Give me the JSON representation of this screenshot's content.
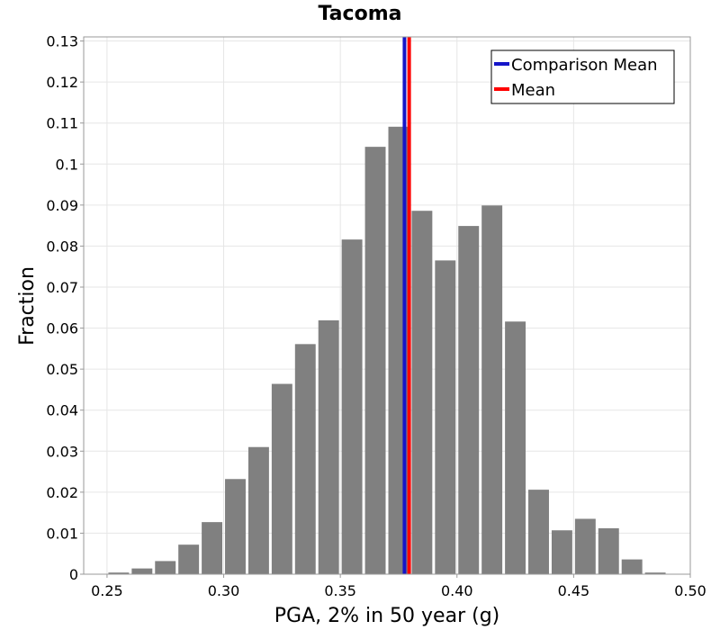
{
  "chart_data": {
    "type": "bar",
    "title": "Tacoma",
    "xlabel": "PGA, 2% in 50 year (g)",
    "ylabel": "Fraction",
    "xlim": [
      0.24,
      0.5
    ],
    "ylim": [
      0,
      0.131
    ],
    "x_ticks": [
      "0.25",
      "0.30",
      "0.35",
      "0.40",
      "0.45",
      "0.50"
    ],
    "y_ticks": [
      "0",
      "0.01",
      "0.02",
      "0.03",
      "0.04",
      "0.05",
      "0.06",
      "0.07",
      "0.08",
      "0.09",
      "0.1",
      "0.11",
      "0.12",
      "0.13"
    ],
    "bin_width": 0.01,
    "bin_centers": [
      0.255,
      0.265,
      0.275,
      0.285,
      0.295,
      0.305,
      0.315,
      0.325,
      0.335,
      0.345,
      0.355,
      0.365,
      0.375,
      0.385,
      0.395,
      0.405,
      0.415,
      0.425,
      0.435,
      0.445,
      0.455,
      0.465,
      0.475,
      0.485
    ],
    "values": [
      0.0004,
      0.0014,
      0.0032,
      0.0072,
      0.0127,
      0.0232,
      0.031,
      0.0464,
      0.0561,
      0.0619,
      0.0816,
      0.1042,
      0.1091,
      0.0886,
      0.0765,
      0.0849,
      0.0899,
      0.0616,
      0.0206,
      0.0107,
      0.0135,
      0.0112,
      0.0036,
      0.0004
    ],
    "bar_color": "#808080",
    "lines": [
      {
        "name": "Comparison Mean",
        "x": 0.3775,
        "color": "#1515c8"
      },
      {
        "name": "Mean",
        "x": 0.3795,
        "color": "#ff0000"
      }
    ],
    "legend": {
      "position": "top-right",
      "entries": [
        "Comparison Mean",
        "Mean"
      ]
    },
    "grid": true
  }
}
